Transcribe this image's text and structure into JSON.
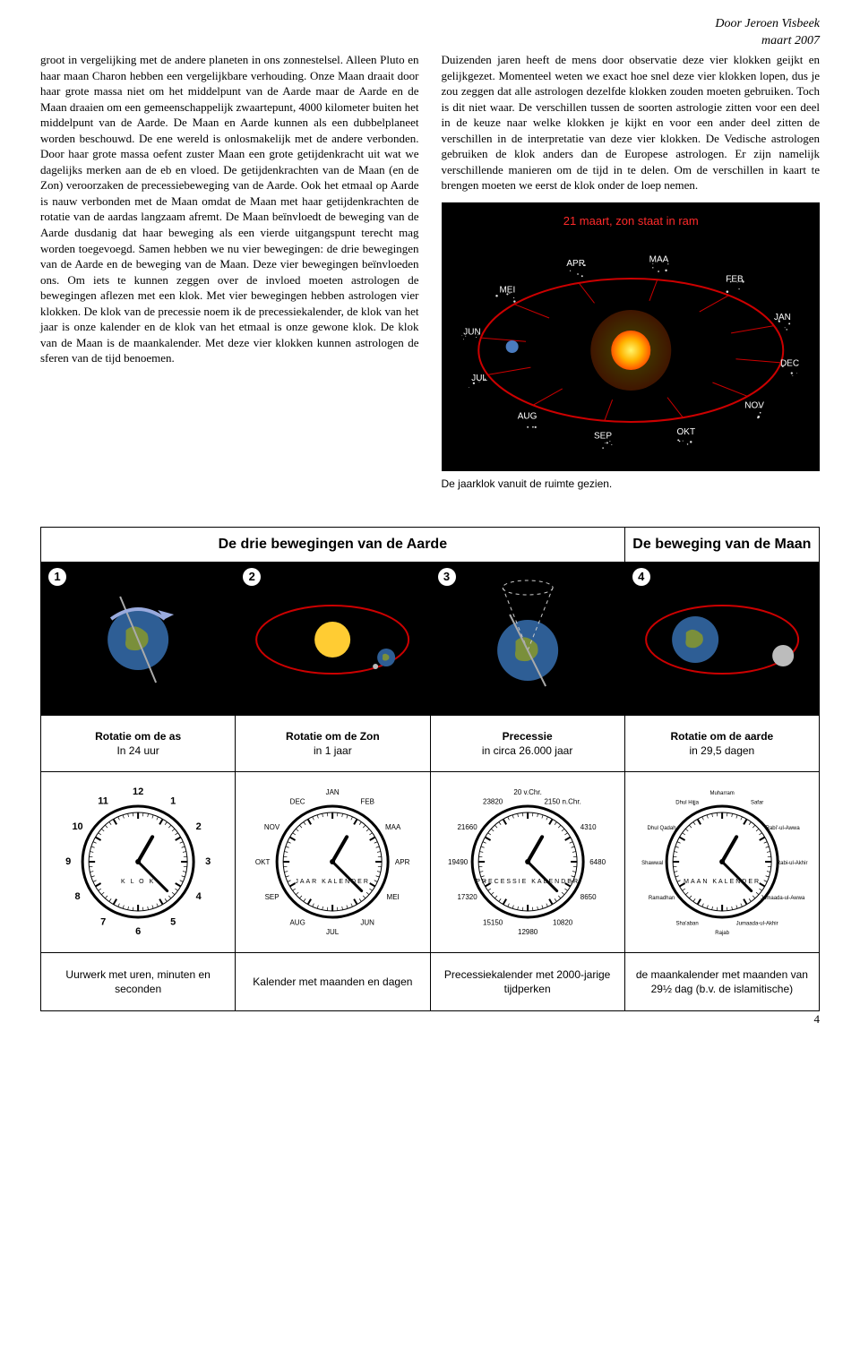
{
  "header": {
    "author": "Door Jeroen Visbeek",
    "date": "maart 2007"
  },
  "col_left_text": "groot in vergelijking met de andere planeten in ons zonnestelsel. Alleen Pluto en haar maan Charon hebben een vergelijkbare verhouding. Onze Maan draait door haar grote massa niet om het middelpunt van de Aarde maar de Aarde en de Maan draaien om een gemeenschappelijk zwaartepunt, 4000 kilometer buiten het middelpunt van de Aarde. De Maan en Aarde kunnen als een dubbelplaneet worden beschouwd. De ene wereld is onlosmakelijk met de andere verbonden. Door haar grote massa oefent zuster Maan een grote getijdenkracht uit wat we dagelijks merken aan de eb en vloed. De getijdenkrachten van de Maan (en de Zon) veroorzaken de precessiebeweging van de Aarde. Ook het etmaal op Aarde is nauw verbonden met de Maan omdat de Maan met haar getijdenkrachten de rotatie van de aardas langzaam afremt. De Maan beïnvloedt de beweging van de Aarde dusdanig dat haar beweging als een vierde uitgangspunt terecht mag worden toegevoegd. Samen hebben we nu vier bewegingen: de drie bewegingen van de Aarde en de beweging van de Maan. Deze vier bewegingen beïnvloeden ons. Om iets te kunnen zeggen over de invloed moeten astrologen de bewegingen aflezen met een klok. Met vier bewegingen hebben astrologen vier klokken. De klok van de precessie noem ik de precessiekalender, de klok van het jaar is onze kalender en de klok van het etmaal is onze gewone klok. De klok van de Maan is de maankalender. Met deze vier klokken kunnen astrologen de sferen van de tijd benoemen.",
  "col_right_text": "Duizenden jaren heeft de mens door observatie deze vier klokken geijkt en gelijkgezet. Momenteel weten we exact hoe snel deze vier klokken lopen, dus je zou zeggen dat alle astrologen dezelfde klokken zouden moeten gebruiken. Toch is dit niet waar. De verschillen tussen de soorten astrologie zitten voor een deel in de keuze naar welke klokken je kijkt en voor een ander deel zitten de verschillen in de interpretatie van deze vier klokken. De Vedische astrologen gebruiken de klok anders dan de Europese astrologen. Er zijn namelijk verschillende manieren om de tijd in te delen. Om de verschillen in kaart te brengen moeten we eerst de klok onder de loep nemen.",
  "zodiac": {
    "title": "21 maart, zon staat in ram",
    "title_color": "#ff2a2a",
    "caption": "De jaarklok vanuit de ruimte gezien.",
    "months": [
      "JAN",
      "FEB",
      "MAA",
      "APR",
      "MEI",
      "JUN",
      "JUL",
      "AUG",
      "SEP",
      "OKT",
      "NOV",
      "DEC"
    ],
    "month_color": "#ffffff",
    "bg": "#000000",
    "orbit_color": "#cc0000",
    "sun_colors": [
      "#fff56b",
      "#ffb300",
      "#ff5500"
    ]
  },
  "table": {
    "title_left": "De drie bewegingen van de Aarde",
    "title_right": "De beweging van de Maan",
    "panels": [
      {
        "num": "1",
        "label_b": "Rotatie om de as",
        "label": "In 24 uur"
      },
      {
        "num": "2",
        "label_b": "Rotatie om de Zon",
        "label": "in 1 jaar"
      },
      {
        "num": "3",
        "label_b": "Precessie",
        "label": "in circa 26.000 jaar"
      },
      {
        "num": "4",
        "label_b": "Rotatie om de aarde",
        "label": "in 29,5 dagen"
      }
    ],
    "clocks": [
      {
        "dial": [
          "12",
          "1",
          "2",
          "3",
          "4",
          "5",
          "6",
          "7",
          "8",
          "9",
          "10",
          "11"
        ],
        "center": "K L O K",
        "caption": "Uurwerk met uren, minuten en seconden"
      },
      {
        "dial": [
          "JAN",
          "FEB",
          "MAA",
          "APR",
          "MEI",
          "JUN",
          "JUL",
          "AUG",
          "SEP",
          "OKT",
          "NOV",
          "DEC"
        ],
        "center": "JAAR  KALENDER",
        "caption": "Kalender met maanden en dagen"
      },
      {
        "dial": [
          "20 v.Chr.",
          "2150 n.Chr.",
          "4310",
          "6480",
          "8650",
          "10820",
          "12980",
          "15150",
          "17320",
          "19490",
          "21660",
          "23820"
        ],
        "center": "PRECESSIE  KALENDER",
        "caption": "Precessiekalender met 2000-jarige tijdperken"
      },
      {
        "dial": [
          "Muharram",
          "Safar",
          "Rabi'-ul-Awwa",
          "Rabi-ul-Akhir",
          "Jumaada-ul-Awwa",
          "Jumaada-ul-Akhir",
          "Rajab",
          "Sha'aban",
          "Ramadhan",
          "Shawwal",
          "Dhul Qadah",
          "Dhul Hijja"
        ],
        "center": "MAAN  KALENDER",
        "caption": "de maankalender met maanden van 29½ dag (b.v. de islamitische)"
      }
    ]
  },
  "page_number": "4"
}
